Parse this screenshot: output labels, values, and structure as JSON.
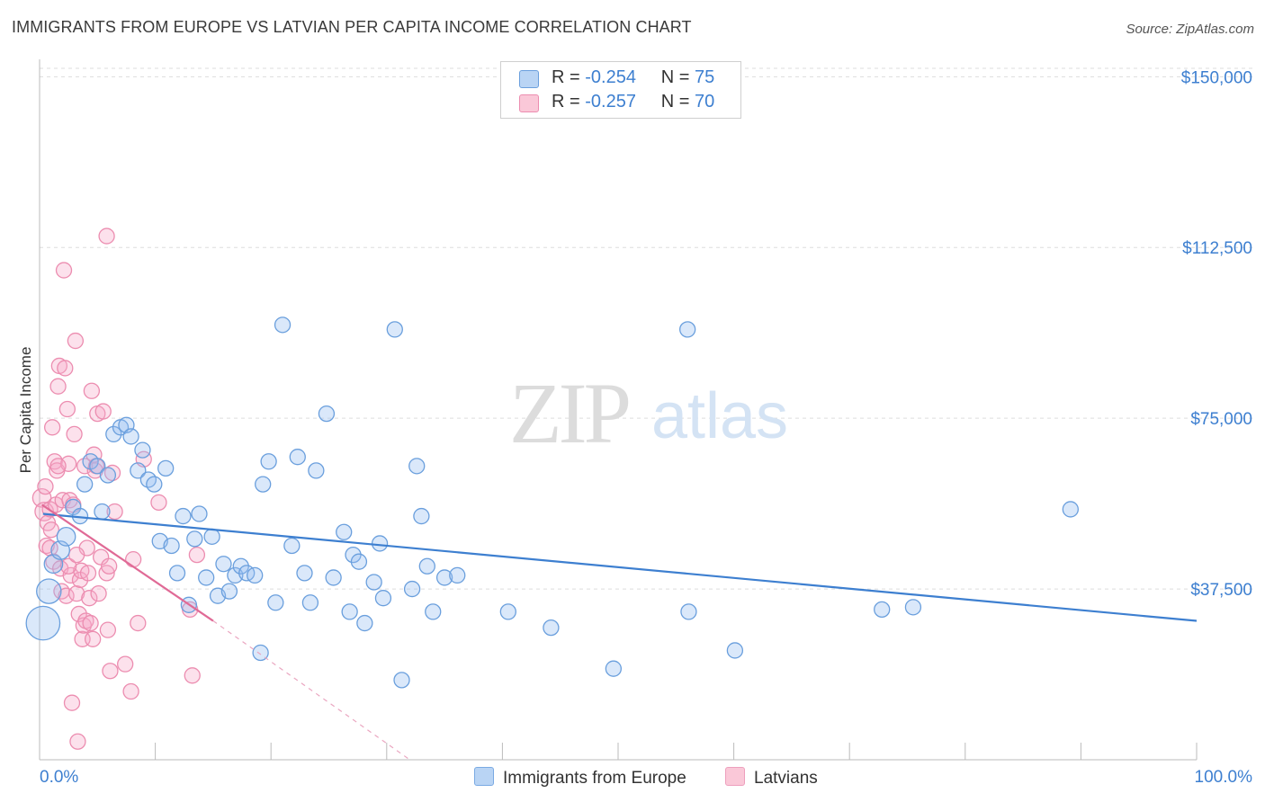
{
  "title": "IMMIGRANTS FROM EUROPE VS LATVIAN PER CAPITA INCOME CORRELATION CHART",
  "source": "Source: ZipAtlas.com",
  "watermark": {
    "zip": "ZIP",
    "atlas": "atlas"
  },
  "legend": {
    "r_label": "R =",
    "n_label": "N =",
    "items": [
      {
        "r": "-0.254",
        "n": "75",
        "color": "#a8c8ef",
        "border": "#6a9fdd"
      },
      {
        "r": "-0.257",
        "n": "70",
        "color": "#f7bcd0",
        "border": "#ec8db0"
      }
    ]
  },
  "bottom_legend": [
    {
      "label": "Immigrants from Europe",
      "color": "#b9d4f4",
      "border": "#7aaae3"
    },
    {
      "label": "Latvians",
      "color": "#fac8d8",
      "border": "#ee9fbd"
    }
  ],
  "chart_data": {
    "type": "scatter",
    "ylabel": "Per Capita Income",
    "xlabel": "",
    "x_tick_labels": [
      "0.0%",
      "100.0%"
    ],
    "y_tick_labels": [
      "$37,500",
      "$75,000",
      "$112,500",
      "$150,000"
    ],
    "y_ticks": [
      37500,
      75000,
      112500,
      150000
    ],
    "xlim": [
      0,
      100
    ],
    "ylim": [
      0,
      155000
    ],
    "colors": {
      "blue": "#3d7fd0",
      "pink": "#e06a96"
    },
    "series": [
      {
        "name": "Immigrants from Europe",
        "color": "#6a9fdd",
        "fill": "rgba(150,190,240,0.35)",
        "trend": {
          "x": [
            0.3,
            100
          ],
          "y": [
            54000,
            30500
          ]
        },
        "points": [
          [
            0.3,
            30000,
            22
          ],
          [
            0.8,
            37000,
            16
          ],
          [
            1.2,
            43000,
            12
          ],
          [
            1.8,
            46000,
            12
          ],
          [
            2.3,
            49000,
            12
          ],
          [
            2.9,
            55500,
            10
          ],
          [
            3.5,
            53500,
            10
          ],
          [
            3.9,
            60500,
            10
          ],
          [
            4.4,
            65500,
            10
          ],
          [
            5.0,
            64500,
            10
          ],
          [
            5.4,
            54500,
            10
          ],
          [
            5.9,
            62500,
            10
          ],
          [
            6.4,
            71500,
            10
          ],
          [
            7.0,
            73000,
            10
          ],
          [
            7.5,
            73500,
            10
          ],
          [
            7.9,
            71000,
            10
          ],
          [
            8.5,
            63500,
            10
          ],
          [
            8.9,
            68000,
            10
          ],
          [
            9.4,
            61500,
            10
          ],
          [
            9.9,
            60500,
            10
          ],
          [
            10.4,
            48000,
            10
          ],
          [
            10.9,
            64000,
            10
          ],
          [
            11.4,
            47000,
            10
          ],
          [
            11.9,
            41000,
            10
          ],
          [
            12.4,
            53500,
            10
          ],
          [
            12.9,
            34000,
            10
          ],
          [
            13.4,
            48500,
            10
          ],
          [
            13.8,
            54000,
            10
          ],
          [
            14.4,
            40000,
            10
          ],
          [
            14.9,
            49000,
            10
          ],
          [
            15.4,
            36000,
            10
          ],
          [
            15.9,
            43000,
            10
          ],
          [
            16.4,
            37000,
            10
          ],
          [
            16.9,
            40500,
            10
          ],
          [
            17.4,
            42500,
            10
          ],
          [
            17.9,
            41000,
            10
          ],
          [
            18.6,
            40500,
            10
          ],
          [
            19.3,
            60500,
            10
          ],
          [
            19.1,
            23500,
            10
          ],
          [
            19.8,
            65500,
            10
          ],
          [
            20.4,
            34500,
            10
          ],
          [
            21.0,
            95500,
            10
          ],
          [
            21.8,
            47000,
            10
          ],
          [
            22.3,
            66500,
            10
          ],
          [
            22.9,
            41000,
            10
          ],
          [
            23.4,
            34500,
            10
          ],
          [
            23.9,
            63500,
            10
          ],
          [
            24.8,
            76000,
            10
          ],
          [
            25.4,
            40000,
            10
          ],
          [
            26.3,
            50000,
            10
          ],
          [
            27.1,
            45000,
            10
          ],
          [
            26.8,
            32500,
            10
          ],
          [
            27.6,
            43500,
            10
          ],
          [
            28.1,
            30000,
            10
          ],
          [
            28.9,
            39000,
            10
          ],
          [
            29.4,
            47500,
            10
          ],
          [
            29.7,
            35500,
            10
          ],
          [
            30.7,
            94500,
            10
          ],
          [
            31.3,
            17500,
            10
          ],
          [
            32.2,
            37500,
            10
          ],
          [
            32.6,
            64500,
            10
          ],
          [
            33.0,
            53500,
            10
          ],
          [
            33.5,
            42500,
            10
          ],
          [
            34.0,
            32500,
            10
          ],
          [
            35.0,
            40000,
            10
          ],
          [
            36.1,
            40500,
            10
          ],
          [
            40.5,
            32500,
            10
          ],
          [
            44.2,
            29000,
            10
          ],
          [
            49.6,
            20000,
            10
          ],
          [
            56.0,
            94500,
            10
          ],
          [
            56.1,
            32500,
            10
          ],
          [
            60.1,
            24000,
            10
          ],
          [
            72.8,
            33000,
            10
          ],
          [
            75.5,
            33500,
            10
          ],
          [
            89.1,
            55000,
            10
          ]
        ]
      },
      {
        "name": "Latvians",
        "color": "#ec8db0",
        "fill": "rgba(245,170,200,0.35)",
        "trend": {
          "x": [
            0.2,
            15
          ],
          "y": [
            56000,
            30500
          ]
        },
        "trend_ext": {
          "x": [
            15,
            32
          ],
          "y": [
            30500,
            0
          ]
        },
        "points": [
          [
            0.2,
            57500,
            12
          ],
          [
            0.4,
            54500,
            12
          ],
          [
            0.5,
            60000,
            10
          ],
          [
            0.6,
            47000,
            10
          ],
          [
            0.7,
            52000,
            10
          ],
          [
            0.9,
            55000,
            10
          ],
          [
            1.0,
            50500,
            10
          ],
          [
            1.1,
            73000,
            10
          ],
          [
            1.2,
            43500,
            10
          ],
          [
            1.3,
            65500,
            10
          ],
          [
            1.4,
            56000,
            10
          ],
          [
            1.5,
            63500,
            10
          ],
          [
            1.6,
            82000,
            10
          ],
          [
            1.7,
            86500,
            10
          ],
          [
            1.8,
            42000,
            10
          ],
          [
            1.9,
            37000,
            10
          ],
          [
            2.0,
            57000,
            10
          ],
          [
            2.1,
            107500,
            10
          ],
          [
            2.2,
            86000,
            10
          ],
          [
            2.3,
            36000,
            10
          ],
          [
            2.4,
            77000,
            10
          ],
          [
            2.5,
            65000,
            10
          ],
          [
            2.6,
            57000,
            10
          ],
          [
            2.7,
            40500,
            10
          ],
          [
            2.8,
            12500,
            10
          ],
          [
            2.9,
            56000,
            10
          ],
          [
            3.0,
            71500,
            10
          ],
          [
            3.1,
            92000,
            10
          ],
          [
            3.2,
            36500,
            10
          ],
          [
            3.3,
            4000,
            10
          ],
          [
            3.4,
            32000,
            10
          ],
          [
            3.5,
            39500,
            10
          ],
          [
            3.6,
            41500,
            10
          ],
          [
            3.7,
            26500,
            10
          ],
          [
            3.8,
            29500,
            10
          ],
          [
            3.9,
            64500,
            10
          ],
          [
            4.0,
            30500,
            10
          ],
          [
            4.1,
            46500,
            10
          ],
          [
            4.2,
            41000,
            10
          ],
          [
            4.3,
            35500,
            10
          ],
          [
            4.4,
            30000,
            10
          ],
          [
            4.5,
            81000,
            10
          ],
          [
            4.6,
            26500,
            10
          ],
          [
            4.7,
            67000,
            10
          ],
          [
            4.8,
            63500,
            10
          ],
          [
            4.9,
            64500,
            10
          ],
          [
            5.0,
            76000,
            10
          ],
          [
            5.1,
            36500,
            10
          ],
          [
            5.3,
            44500,
            10
          ],
          [
            5.5,
            76500,
            10
          ],
          [
            5.8,
            115000,
            10
          ],
          [
            5.8,
            41000,
            10
          ],
          [
            5.9,
            28500,
            10
          ],
          [
            6.0,
            42500,
            10
          ],
          [
            6.1,
            19500,
            10
          ],
          [
            6.3,
            63000,
            10
          ],
          [
            6.5,
            54500,
            10
          ],
          [
            7.4,
            21000,
            10
          ],
          [
            7.9,
            15000,
            10
          ],
          [
            8.1,
            44000,
            10
          ],
          [
            8.5,
            30000,
            10
          ],
          [
            9.0,
            66000,
            10
          ],
          [
            10.3,
            56500,
            10
          ],
          [
            13.0,
            33000,
            10
          ],
          [
            13.2,
            18500,
            10
          ],
          [
            13.6,
            45000,
            10
          ],
          [
            2.5,
            42500,
            10
          ],
          [
            3.2,
            45000,
            10
          ],
          [
            1.6,
            64500,
            10
          ],
          [
            0.9,
            46500,
            10
          ]
        ]
      }
    ]
  }
}
